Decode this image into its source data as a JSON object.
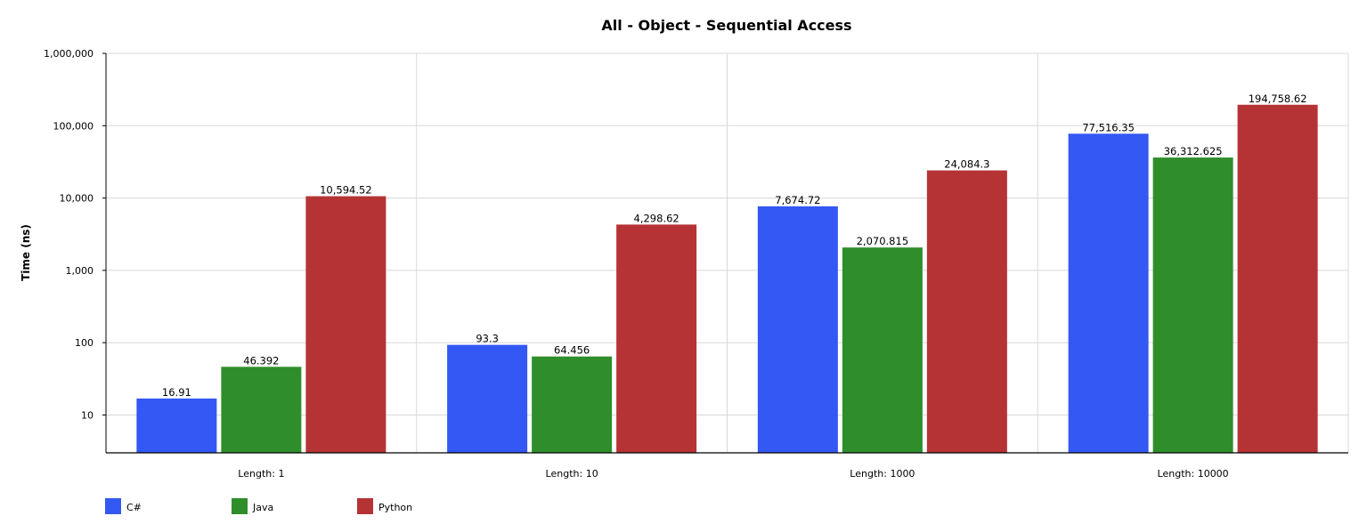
{
  "chart_data": {
    "type": "bar",
    "title": "All - Object - Sequential Access",
    "ylabel": "Time (ns)",
    "xlabel": "",
    "yscale": "log",
    "ylim": [
      3,
      1000000
    ],
    "yticks": [
      10,
      100,
      1000,
      10000,
      100000,
      1000000
    ],
    "ytick_labels": [
      "10",
      "100",
      "1,000",
      "10,000",
      "100,000",
      "1,000,000"
    ],
    "grid": true,
    "legend_position": "bottom-left",
    "categories": [
      "Length: 1",
      "Length: 10",
      "Length: 1000",
      "Length: 10000"
    ],
    "series": [
      {
        "name": "C#",
        "color": "#3358F4",
        "values": [
          16.91,
          93.3,
          7674.72,
          77516.35
        ],
        "labels": [
          "16.91",
          "93.3",
          "7,674.72",
          "77,516.35"
        ]
      },
      {
        "name": "Java",
        "color": "#2F8E2B",
        "values": [
          46.392,
          64.456,
          2070.815,
          36312.625
        ],
        "labels": [
          "46.392",
          "64.456",
          "2,070.815",
          "36,312.625"
        ]
      },
      {
        "name": "Python",
        "color": "#B63335",
        "values": [
          10594.52,
          4298.62,
          24084.3,
          194758.62
        ],
        "labels": [
          "10,594.52",
          "4,298.62",
          "24,084.3",
          "194,758.62"
        ]
      }
    ]
  }
}
